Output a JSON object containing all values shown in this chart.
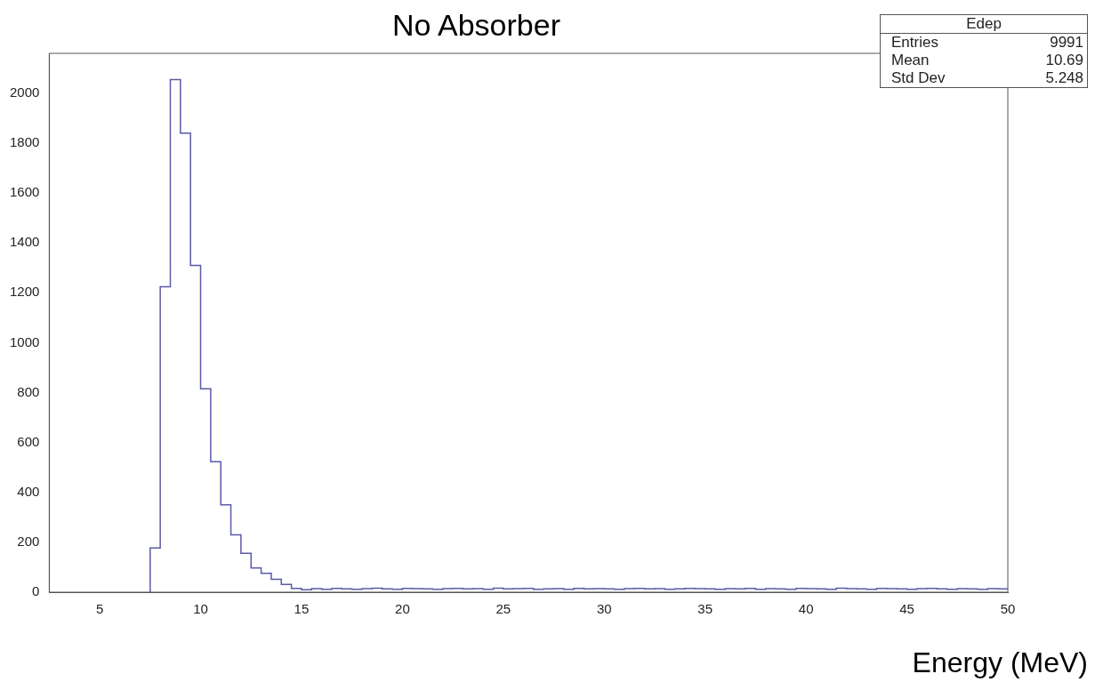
{
  "chart_data": {
    "type": "histogram",
    "title": "No Absorber",
    "xlabel": "Energy (MeV)",
    "bins": [
      7.5,
      8,
      8.5,
      9,
      9.5,
      10,
      10.5,
      11,
      11.5,
      12,
      12.5,
      13,
      13.5,
      14,
      14.5,
      15,
      15.5,
      16,
      16.5,
      17,
      17.5,
      18,
      18.5,
      19,
      19.5,
      20,
      20.5,
      21,
      21.5,
      22,
      22.5,
      23,
      23.5,
      24,
      24.5,
      25,
      25.5,
      26,
      26.5,
      27,
      27.5,
      28,
      28.5,
      29,
      29.5,
      30,
      30.5,
      31,
      31.5,
      32,
      32.5,
      33,
      33.5,
      34,
      34.5,
      35,
      35.5,
      36,
      36.5,
      37,
      37.5,
      38,
      38.5,
      39,
      39.5,
      40,
      40.5,
      41,
      41.5,
      42,
      42.5,
      43,
      43.5,
      44,
      44.5,
      45,
      45.5,
      46,
      46.5,
      47,
      47.5,
      48,
      48.5,
      49,
      49.5,
      50
    ],
    "values": [
      177,
      1224,
      2055,
      1840,
      1310,
      815,
      523,
      350,
      230,
      156,
      97,
      76,
      52,
      31,
      15,
      10,
      14,
      12,
      15,
      13,
      12,
      14,
      16,
      13,
      12,
      15,
      14,
      13,
      12,
      14,
      15,
      13,
      14,
      12,
      16,
      13,
      14,
      15,
      12,
      13,
      14,
      12,
      15,
      13,
      14,
      13,
      12,
      14,
      15,
      13,
      14,
      12,
      13,
      15,
      14,
      13,
      12,
      14,
      13,
      15,
      12,
      14,
      13,
      12,
      15,
      14,
      13,
      12,
      16,
      14,
      13,
      12,
      15,
      14,
      13,
      12,
      14,
      15,
      13,
      12,
      14,
      13,
      12,
      14,
      13
    ],
    "color": "#5a5aa8",
    "xlim": [
      2.5,
      50
    ],
    "xticks": [
      5,
      10,
      15,
      20,
      25,
      30,
      35,
      40,
      45,
      50
    ],
    "ylim": [
      0,
      2160
    ],
    "yticks": [
      0,
      200,
      400,
      600,
      800,
      1000,
      1200,
      1400,
      1600,
      1800,
      2000
    ],
    "grid": false,
    "legend": false,
    "annotations": [
      "Edep",
      "Entries",
      "9991",
      "Mean",
      "10.69",
      "Std Dev",
      "5.248"
    ]
  }
}
